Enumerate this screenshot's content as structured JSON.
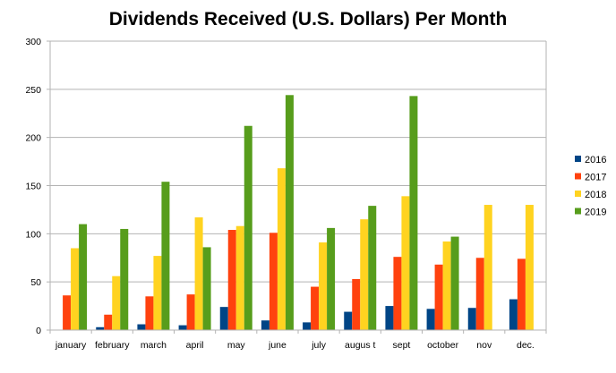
{
  "chart_data": {
    "type": "bar",
    "title": "Dividends Received (U.S. Dollars) Per Month",
    "xlabel": "",
    "ylabel": "",
    "ylim": [
      0,
      300
    ],
    "yticks": [
      0,
      50,
      100,
      150,
      200,
      250,
      300
    ],
    "grid": true,
    "legend_position": "right",
    "categories": [
      "january",
      "february",
      "march",
      "april",
      "may",
      "june",
      "july",
      "augus t",
      "sept",
      "october",
      "nov",
      "dec."
    ],
    "series": [
      {
        "name": "2016",
        "color": "#004586",
        "values": [
          0,
          3,
          6,
          5,
          24,
          10,
          8,
          19,
          25,
          22,
          23,
          32
        ]
      },
      {
        "name": "2017",
        "color": "#ff420e",
        "values": [
          36,
          16,
          35,
          37,
          104,
          101,
          45,
          53,
          76,
          68,
          75,
          74
        ]
      },
      {
        "name": "2018",
        "color": "#ffd320",
        "values": [
          85,
          56,
          77,
          117,
          108,
          168,
          91,
          115,
          139,
          92,
          130,
          130
        ]
      },
      {
        "name": "2019",
        "color": "#579d1c",
        "values": [
          110,
          105,
          154,
          86,
          212,
          244,
          106,
          129,
          243,
          97,
          0,
          0
        ]
      }
    ]
  }
}
